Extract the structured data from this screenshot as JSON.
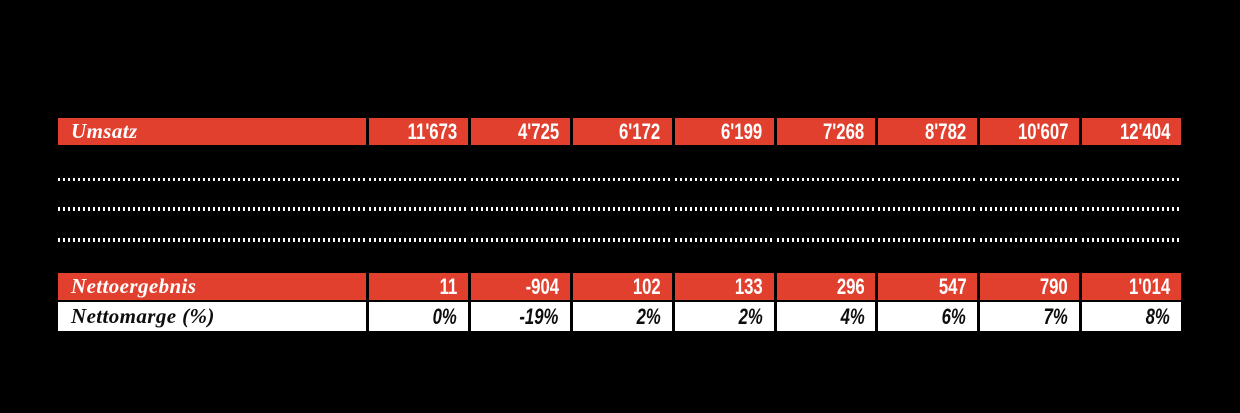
{
  "theme": {
    "background": "#000000",
    "row_red": "#e2402f",
    "row_white": "#ffffff",
    "text_on_red": "#ffffff",
    "text_on_white": "#0d0d0d",
    "dot_color": "#ffffff"
  },
  "table": {
    "redacted_row_count": 3,
    "rows": {
      "umsatz": {
        "label": "Umsatz",
        "values": [
          "11'673",
          "4'725",
          "6'172",
          "6'199",
          "7'268",
          "8'782",
          "10'607",
          "12'404"
        ]
      },
      "nettoergebnis": {
        "label": "Nettoergebnis",
        "values": [
          "11",
          "-904",
          "102",
          "133",
          "296",
          "547",
          "790",
          "1'014"
        ]
      },
      "nettomarge": {
        "label": "Nettomarge (%)",
        "values": [
          "0%",
          "-19%",
          "2%",
          "2%",
          "4%",
          "6%",
          "7%",
          "8%"
        ]
      }
    }
  }
}
